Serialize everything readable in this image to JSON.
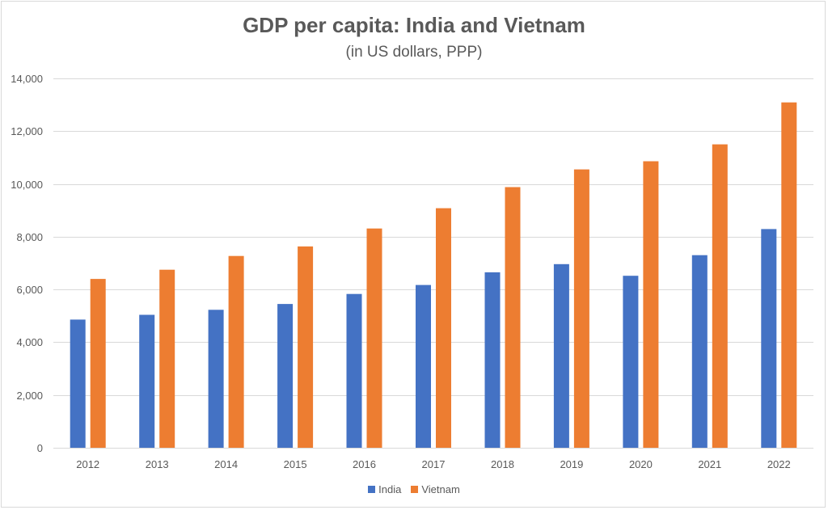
{
  "chart_data": {
    "type": "bar",
    "title": "GDP per capita: India and Vietnam",
    "subtitle": "(in US dollars, PPP)",
    "xlabel": "",
    "ylabel": "",
    "categories": [
      "2012",
      "2013",
      "2014",
      "2015",
      "2016",
      "2017",
      "2018",
      "2019",
      "2020",
      "2021",
      "2022"
    ],
    "series": [
      {
        "name": "India",
        "color": "#4472c4",
        "values": [
          4860,
          5040,
          5230,
          5450,
          5830,
          6170,
          6650,
          6960,
          6520,
          7300,
          8290
        ]
      },
      {
        "name": "Vietnam",
        "color": "#ed7d31",
        "values": [
          6400,
          6750,
          7270,
          7630,
          8310,
          9080,
          9880,
          10550,
          10860,
          11500,
          13090
        ]
      }
    ],
    "ylim": [
      0,
      14000
    ],
    "yticks": [
      0,
      2000,
      4000,
      6000,
      8000,
      10000,
      12000,
      14000
    ],
    "ytick_labels": [
      "0",
      "2,000",
      "4,000",
      "6,000",
      "8,000",
      "10,000",
      "12,000",
      "14,000"
    ],
    "grid": true,
    "legend_position": "bottom-center"
  }
}
